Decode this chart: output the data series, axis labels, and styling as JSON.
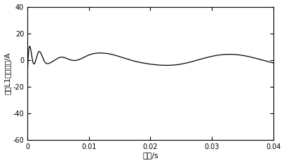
{
  "title": "",
  "xlabel": "时间/s",
  "ylabel": "线路L1变换电流/A",
  "xlim": [
    0,
    0.04
  ],
  "ylim": [
    -60,
    40
  ],
  "yticks": [
    -60,
    -40,
    -20,
    0,
    20,
    40
  ],
  "xticks": [
    0,
    0.01,
    0.02,
    0.03,
    0.04
  ],
  "xtick_labels": [
    "0",
    "0.01",
    "0.02",
    "0.03",
    "0.04"
  ],
  "ytick_labels": [
    "-60",
    "-40",
    "-20",
    "0",
    "20",
    "40"
  ],
  "line_color": "#000000",
  "line_width": 0.9,
  "bg_color": "#ffffff",
  "tick_fontsize": 7,
  "label_fontsize": 8
}
